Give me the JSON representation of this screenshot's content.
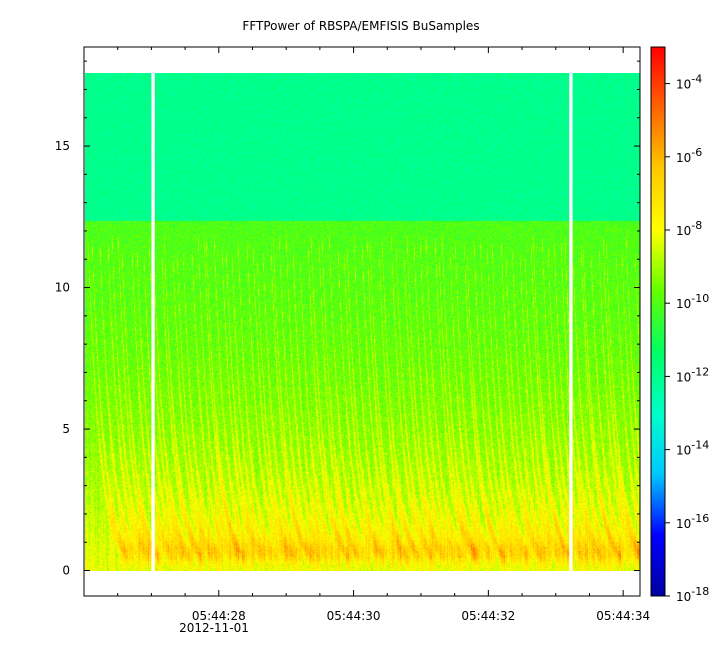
{
  "chart_data": {
    "type": "heatmap",
    "title": "FFTPower of RBSPA/EMFISIS  BuSamples",
    "xlabel": "",
    "ylabel": "",
    "x_ticks": [
      "05:44:28",
      "05:44:30",
      "05:44:32",
      "05:44:34"
    ],
    "x_tick_seconds": [
      28,
      30,
      32,
      34
    ],
    "x_date_label": "2012-11-01",
    "xlim_seconds": [
      26.0,
      34.25
    ],
    "y_ticks": [
      0,
      5,
      10,
      15
    ],
    "ylim": [
      -0.9,
      18.5
    ],
    "y_data_range": [
      0,
      17.5
    ],
    "data_gaps_seconds": [
      [
        27.0,
        27.05
      ],
      [
        33.2,
        33.25
      ]
    ],
    "colorbar": {
      "scale": "log",
      "range": [
        1e-18,
        0.001
      ],
      "ticks": [
        {
          "base": "10",
          "exp": "-4",
          "value": 0.0001
        },
        {
          "base": "10",
          "exp": "-6",
          "value": 1e-06
        },
        {
          "base": "10",
          "exp": "-8",
          "value": 1e-08
        },
        {
          "base": "10",
          "exp": "-10",
          "value": 1e-10
        },
        {
          "base": "10",
          "exp": "-12",
          "value": 1e-12
        },
        {
          "base": "10",
          "exp": "-14",
          "value": 1e-14
        },
        {
          "base": "10",
          "exp": "-16",
          "value": 1e-16
        },
        {
          "base": "10",
          "exp": "-18",
          "value": 1e-18
        }
      ],
      "colors": [
        "#0000a0",
        "#0000ff",
        "#00c8ff",
        "#00ffc8",
        "#00ff64",
        "#64ff00",
        "#ffff00",
        "#ffc800",
        "#ff6400",
        "#ff0000"
      ]
    },
    "levels": {
      "upper_band_power": 1e-12,
      "mid_band_power": 1e-10,
      "lower_band_power": 1e-08,
      "upper_band_start": 12.3
    },
    "grid": false,
    "legend": "none"
  }
}
